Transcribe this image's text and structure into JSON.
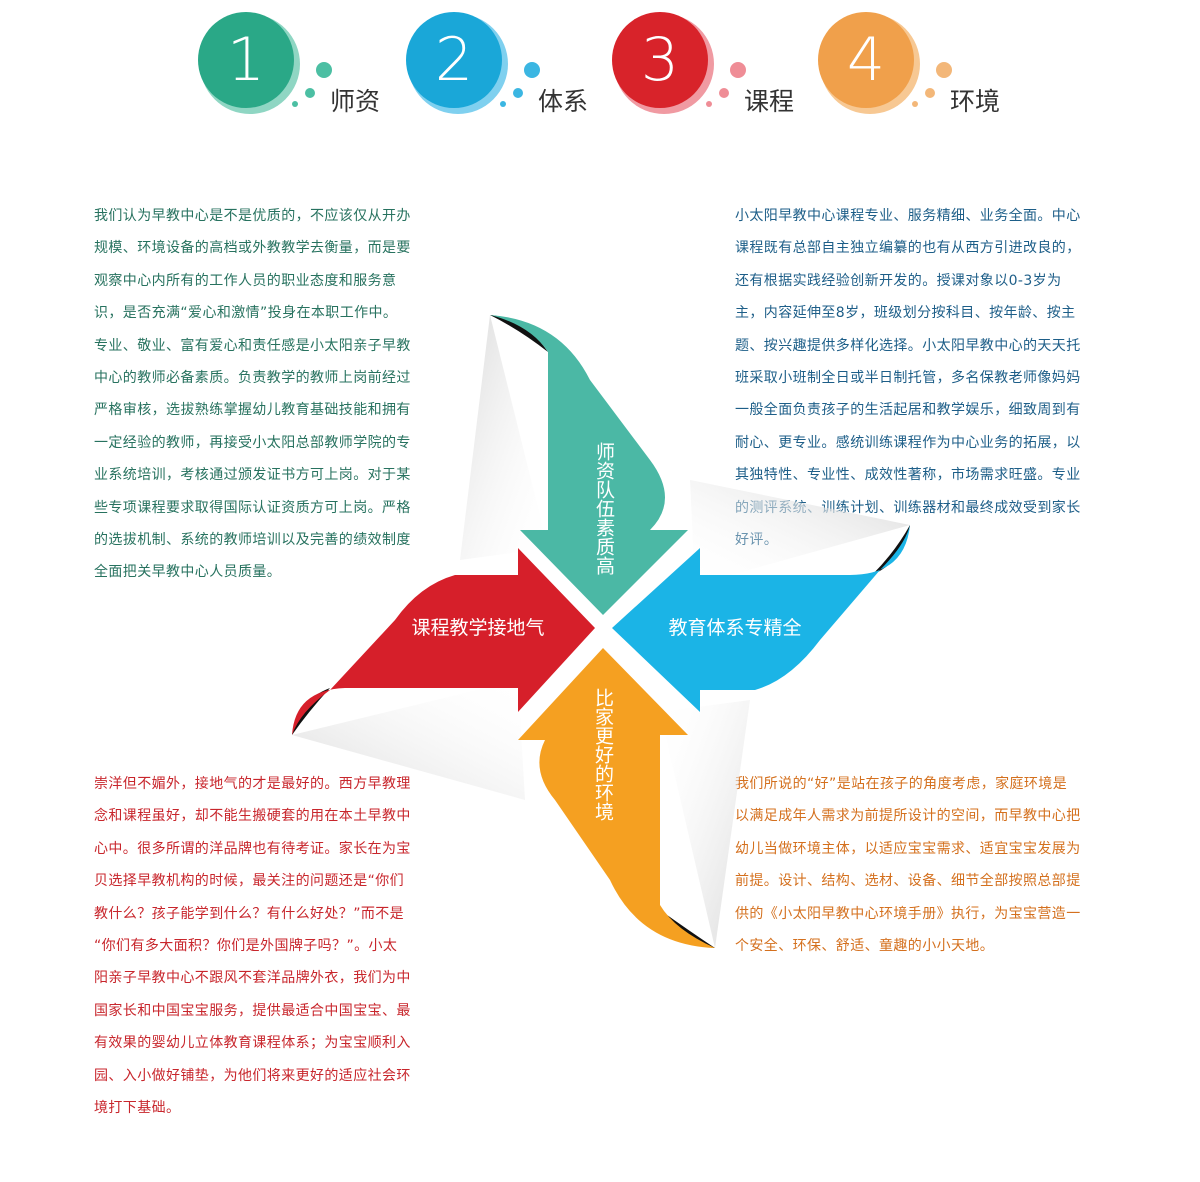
{
  "header": {
    "items": [
      {
        "num": "1",
        "label": "师资",
        "color": "#2aa887"
      },
      {
        "num": "2",
        "label": "体系",
        "color": "#1aa7d8"
      },
      {
        "num": "3",
        "label": "课程",
        "color": "#d8232a"
      },
      {
        "num": "4",
        "label": "环境",
        "color": "#f0a04b"
      }
    ]
  },
  "paragraphs": {
    "teachers": {
      "color": "#27725f",
      "lines": [
        "我们认为早教中心是不是优质的，不应该仅从开办",
        "规模、环境设备的高档或外教教学去衡量，而是要",
        "观察中心内所有的工作人员的职业态度和服务意",
        "识，是否充满“爱心和激情”投身在本职工作中。",
        "专业、敬业、富有爱心和责任感是小太阳亲子早教",
        "中心的教师必备素质。负责教学的教师上岗前经过",
        "严格审核，选拔熟练掌握幼儿教育基础技能和拥有",
        "一定经验的教师，再接受小太阳总部教师学院的专",
        "业系统培训，考核通过颁发证书方可上岗。对于某",
        "些专项课程要求取得国际认证资质方可上岗。严格",
        "的选拔机制、系统的教师培训以及完善的绩效制度",
        "全面把关早教中心人员质量。"
      ]
    },
    "system": {
      "color": "#1d5e88",
      "lines": [
        "小太阳早教中心课程专业、服务精细、业务全面。中心",
        "课程既有总部自主独立编纂的也有从西方引进改良的，",
        "还有根据实践经验创新开发的。授课对象以0-3岁为",
        "主，内容延伸至8岁，班级划分按科目、按年龄、按主",
        "题、按兴趣提供多样化选择。小太阳早教中心的天天托",
        "班采取小班制全日或半日制托管，多名保教老师像妈妈",
        "一般全面负责孩子的生活起居和教学娱乐，细致周到有",
        "耐心、更专业。感统训练课程作为中心业务的拓展，以",
        "其独特性、专业性、成效性著称，市场需求旺盛。专业",
        "的测评系统、训练计划、训练器材和最终成效受到家长",
        "好评。"
      ]
    },
    "curriculum": {
      "color": "#c8262c",
      "lines": [
        "崇洋但不媚外，接地气的才是最好的。西方早教理",
        "念和课程虽好，却不能生搬硬套的用在本土早教中",
        "心中。很多所谓的洋品牌也有待考证。家长在为宝",
        "贝选择早教机构的时候，最关注的问题还是“你们",
        "教什么？孩子能学到什么？有什么好处？”而不是",
        "“你们有多大面积？你们是外国牌子吗？”。小太",
        "阳亲子早教中心不跟风不套洋品牌外衣，我们为中",
        "国家长和中国宝宝服务，提供最适合中国宝宝、最",
        "有效果的婴幼儿立体教育课程体系；为宝宝顺利入",
        "园、入小做好铺垫，为他们将来更好的适应社会环",
        "境打下基础。"
      ]
    },
    "environment": {
      "color": "#d4701e",
      "lines": [
        "我们所说的“好”是站在孩子的角度考虑，家庭环境是",
        "以满足成年人需求为前提所设计的空间，而早教中心把",
        "幼儿当做环境主体，以适应宝宝需求、适宜宝宝发展为",
        "前提。设计、结构、选材、设备、细节全部按照总部提",
        "供的《小太阳早教中心环境手册》执行，为宝宝营造一",
        "个安全、环保、舒适、童趣的小小天地。"
      ]
    }
  },
  "diagram": {
    "top_label": "师资队伍素质高",
    "right_label": "教育体系专精全",
    "bottom_label": "比家更好的环境",
    "left_label": "课程教学接地气",
    "colors": {
      "teal": "#4bb8a5",
      "blue": "#1bb4e6",
      "orange": "#f5a021",
      "red": "#d61f2a"
    }
  }
}
